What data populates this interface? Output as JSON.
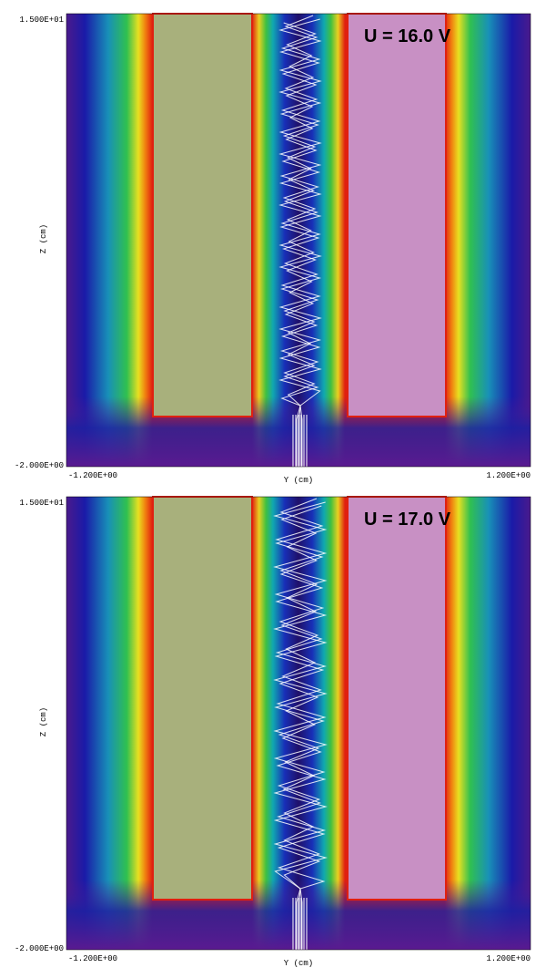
{
  "panels": [
    {
      "voltage_label": "U = 16.0 V",
      "y_axis_top": "1.500E+01",
      "y_axis_bottom": "-2.000E+00",
      "x_axis_left": "-1.200E+00",
      "x_axis_right": "1.200E+00",
      "x_axis_title": "Y (cm)",
      "y_axis_title": "Z (cm)"
    },
    {
      "voltage_label": "U = 17.0 V",
      "y_axis_top": "1.500E+01",
      "y_axis_bottom": "-2.000E+00",
      "x_axis_left": "-1.200E+00",
      "x_axis_right": "1.200E+00",
      "x_axis_title": "Y (cm)",
      "y_axis_title": "Z (cm)"
    }
  ]
}
